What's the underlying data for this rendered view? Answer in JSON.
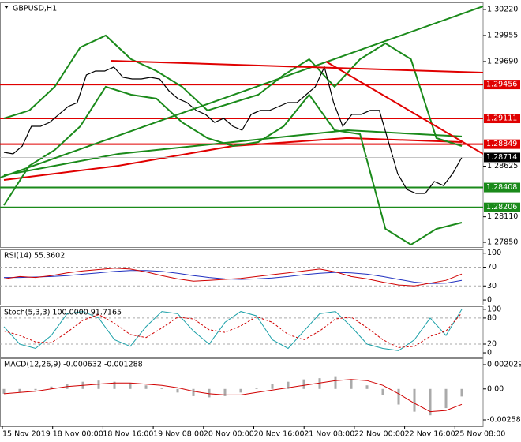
{
  "chart_data": [
    {
      "type": "line",
      "title": "GBPUSD,H1",
      "ylim": [
        1.27802,
        1.30292
      ],
      "yticks": [
        {
          "value": 1.3022,
          "label": "1.30220"
        },
        {
          "value": 1.29955,
          "label": "1.29955"
        },
        {
          "value": 1.2969,
          "label": "1.29690"
        },
        {
          "value": 1.28625,
          "label": "1.28625"
        },
        {
          "value": 1.2811,
          "label": "1.28110"
        },
        {
          "value": 1.2785,
          "label": "1.27850"
        }
      ],
      "levels": [
        {
          "value": 1.29456,
          "label": "1.29456",
          "color": "#e00000"
        },
        {
          "value": 1.29111,
          "label": "1.29111",
          "color": "#e00000"
        },
        {
          "value": 1.28849,
          "label": "1.28849",
          "color": "#e00000"
        },
        {
          "value": 1.28408,
          "label": "1.28408",
          "color": "#1a8a1a"
        },
        {
          "value": 1.28206,
          "label": "1.28206",
          "color": "#1a8a1a"
        }
      ],
      "current_price": {
        "value": 1.28714,
        "label": "1.28714"
      },
      "series": [
        {
          "color": "#1a8a1a",
          "width": 2,
          "values": [
            1.28533,
            1.2875,
            1.2887,
            1.28991,
            1.28927
          ]
        },
        {
          "color": "#e00000",
          "width": 2,
          "values": [
            1.28485,
            1.28629,
            1.2883,
            1.28911,
            1.2887
          ]
        },
        {
          "color": "#1a8a1a",
          "width": 2,
          "values": [
            1.29111,
            1.29192,
            1.29433,
            1.29834,
            1.29955,
            1.29714,
            1.29593,
            1.29433,
            1.29192,
            1.29272,
            1.29352,
            1.29553,
            1.29714,
            1.29433,
            1.29714,
            1.29875,
            1.29714,
            1.28911,
            1.2883
          ]
        },
        {
          "color": "#1a8a1a",
          "width": 2,
          "values": [
            1.28228,
            1.28629,
            1.2879,
            1.29031,
            1.29433,
            1.29352,
            1.29312,
            1.29071,
            1.28911,
            1.2883,
            1.2887,
            1.29031,
            1.29352,
            1.28991,
            1.28951,
            1.27987,
            1.27826,
            1.27987,
            1.28051
          ]
        },
        {
          "color": "#000000",
          "width": 1.2,
          "values": [
            1.28766,
            1.2875,
            1.2883,
            1.29031,
            1.29031,
            1.29071,
            1.29152,
            1.29232,
            1.29272,
            1.29553,
            1.29593,
            1.29593,
            1.29634,
            1.29529,
            1.29513,
            1.29513,
            1.29529,
            1.29513,
            1.29393,
            1.29312,
            1.29272,
            1.29192,
            1.29152,
            1.29071,
            1.29111,
            1.29031,
            1.28991,
            1.29152,
            1.29192,
            1.29192,
            1.29232,
            1.29272,
            1.29272,
            1.29352,
            1.29433,
            1.29634,
            1.29272,
            1.29031,
            1.29152,
            1.29152,
            1.29192,
            1.29192,
            1.2887,
            1.28549,
            1.28388,
            1.28348,
            1.28348,
            1.28469,
            1.28428,
            1.28549,
            1.28714
          ]
        }
      ]
    },
    {
      "type": "line",
      "title": "RSI(14) 55.3602",
      "ylim": [
        -10,
        108
      ],
      "yticks": [
        100,
        70,
        30,
        0
      ],
      "levels": [
        70,
        30
      ],
      "series": [
        {
          "color": "#2030c0",
          "width": 1,
          "values": [
            48,
            48,
            49,
            50,
            52,
            55,
            58,
            61,
            63,
            63,
            61,
            57,
            52,
            48,
            45,
            44,
            45,
            47,
            50,
            54,
            57,
            59,
            58,
            55,
            50,
            44,
            38,
            35,
            36,
            42
          ]
        },
        {
          "color": "#d00000",
          "width": 1,
          "values": [
            45,
            50,
            48,
            52,
            58,
            62,
            65,
            68,
            66,
            60,
            52,
            45,
            40,
            42,
            44,
            46,
            50,
            54,
            58,
            62,
            66,
            60,
            50,
            45,
            38,
            32,
            30,
            36,
            42,
            55.3602
          ]
        }
      ]
    },
    {
      "type": "line",
      "title": "Stoch(5,3,3) 100.0000 91.7165",
      "ylim": [
        -9,
        107
      ],
      "yticks": [
        100,
        80,
        20,
        0
      ],
      "levels": [
        80,
        20
      ],
      "series": [
        {
          "color": "#1ba0a8",
          "width": 1,
          "values": [
            60,
            20,
            10,
            40,
            90,
            95,
            80,
            30,
            15,
            60,
            95,
            90,
            50,
            20,
            70,
            95,
            85,
            30,
            10,
            50,
            90,
            95,
            60,
            20,
            10,
            5,
            30,
            80,
            40,
            100
          ]
        },
        {
          "color": "#d00000",
          "width": 1,
          "dash": "3,2",
          "values": [
            50,
            40,
            25,
            23,
            47,
            75,
            88,
            68,
            42,
            35,
            57,
            82,
            78,
            53,
            47,
            62,
            83,
            70,
            42,
            30,
            50,
            78,
            82,
            58,
            30,
            12,
            15,
            38,
            50,
            91.7165
          ]
        }
      ]
    },
    {
      "type": "line",
      "title": "MACD(12,26,9) -0.000632 -0.001288",
      "ylim": [
        -0.00311,
        0.002556
      ],
      "yticks": [
        0.002029,
        {
          "value": 0,
          "label": "0.00"
        },
        -0.002583
      ],
      "series": [
        {
          "color": "#aaaaaa",
          "type": "bar",
          "values": [
            -0.0004,
            -0.0003,
            -0.0001,
            0.0002,
            0.0004,
            0.0006,
            0.0007,
            0.0006,
            0.0005,
            0.0003,
            0.0001,
            -0.0003,
            -0.0006,
            -0.0007,
            -0.0006,
            -0.0003,
            0.0001,
            0.0004,
            0.0006,
            0.0008,
            0.0009,
            0.001,
            0.0008,
            0.0003,
            -0.0005,
            -0.0013,
            -0.0019,
            -0.0022,
            -0.0016,
            -0.000632
          ]
        },
        {
          "color": "#d00000",
          "width": 1,
          "values": [
            -0.0004,
            -0.0003,
            -0.0002,
            0,
            0.0002,
            0.0003,
            0.0004,
            0.0005,
            0.0005,
            0.0004,
            0.0003,
            0.0001,
            -0.0002,
            -0.0004,
            -0.0005,
            -0.0005,
            -0.0003,
            -0.0001,
            0.0001,
            0.0003,
            0.0005,
            0.0007,
            0.0008,
            0.0007,
            0.0003,
            -0.0004,
            -0.0012,
            -0.0019,
            -0.0018,
            -0.001288
          ]
        }
      ]
    }
  ],
  "time_axis": {
    "labels": [
      "15 Nov 2019",
      "18 Nov 00:00",
      "18 Nov 16:00",
      "19 Nov 08:00",
      "20 Nov 00:00",
      "20 Nov 16:00",
      "21 Nov 08:00",
      "22 Nov 00:00",
      "22 Nov 16:00",
      "25 Nov 08:00"
    ]
  }
}
